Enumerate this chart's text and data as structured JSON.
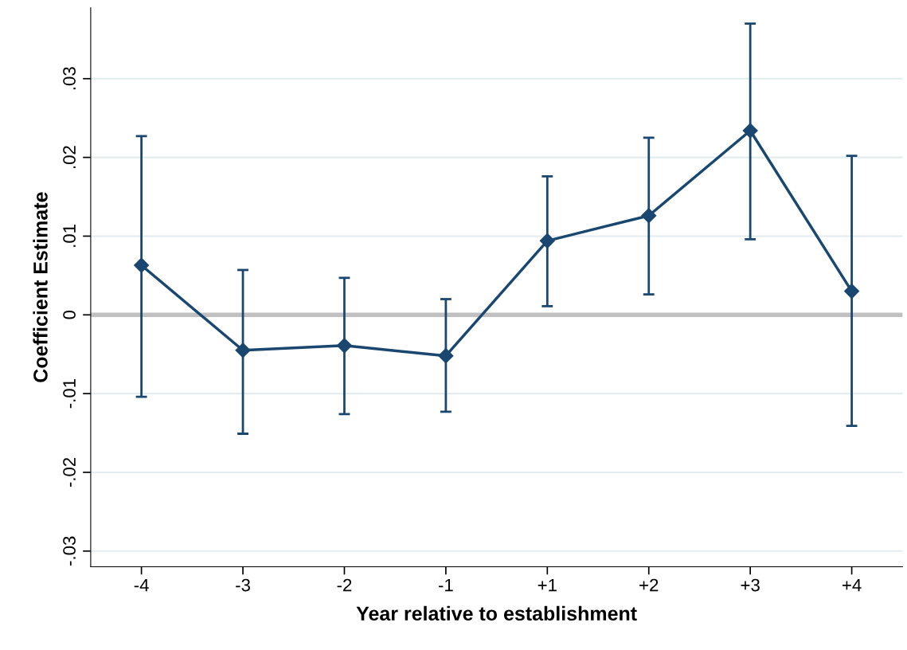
{
  "chart_data": {
    "type": "line",
    "xlabel": "Year relative to establishment",
    "ylabel": "Coefficient Estimate",
    "categories": [
      "-4",
      "-3",
      "-2",
      "-1",
      "+1",
      "+2",
      "+3",
      "+4"
    ],
    "series": [
      {
        "color": "#1a476f",
        "values": [
          0.0063,
          -0.0045,
          -0.0039,
          -0.0052,
          0.0094,
          0.0126,
          0.0234,
          0.003
        ],
        "errors": [
          [
            -0.0104,
            0.0227
          ],
          [
            -0.0151,
            0.0057
          ],
          [
            -0.0126,
            0.0047
          ],
          [
            -0.0123,
            0.002
          ],
          [
            0.0011,
            0.0176
          ],
          [
            0.0026,
            0.0225
          ],
          [
            0.0096,
            0.037
          ],
          [
            -0.0141,
            0.0202
          ]
        ]
      }
    ],
    "ylim": [
      -0.032,
      0.039
    ],
    "yticks": [
      {
        "value": -0.03,
        "label": "-.03"
      },
      {
        "value": -0.02,
        "label": "-.02"
      },
      {
        "value": -0.01,
        "label": "-.01"
      },
      0,
      {
        "value": 0.01,
        "label": ".01"
      },
      {
        "value": 0.02,
        "label": ".02"
      },
      {
        "value": 0.03,
        "label": ".03"
      }
    ],
    "ref_lines": [
      {
        "axis": "y",
        "value": 0,
        "color": "#c0c0c0"
      }
    ],
    "grid": "y",
    "marker": "diamond",
    "line_style": "solid"
  }
}
